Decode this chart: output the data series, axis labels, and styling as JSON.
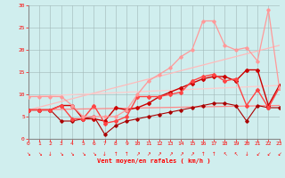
{
  "xlabel": "Vent moyen/en rafales ( km/h )",
  "xlim": [
    0,
    23
  ],
  "ylim": [
    0,
    30
  ],
  "xticks": [
    0,
    1,
    2,
    3,
    4,
    5,
    6,
    7,
    8,
    9,
    10,
    11,
    12,
    13,
    14,
    15,
    16,
    17,
    18,
    19,
    20,
    21,
    22,
    23
  ],
  "yticks": [
    0,
    5,
    10,
    15,
    20,
    25,
    30
  ],
  "background_color": "#d0eeee",
  "grid_color": "#a0b8b8",
  "series": [
    {
      "comment": "dark red main line with markers",
      "x": [
        0,
        1,
        2,
        3,
        4,
        5,
        6,
        7,
        8,
        9,
        10,
        11,
        12,
        13,
        14,
        15,
        16,
        17,
        18,
        19,
        20,
        21,
        22,
        23
      ],
      "y": [
        6.5,
        6.5,
        6.5,
        7.5,
        7.5,
        4.5,
        4.5,
        4.0,
        7.0,
        6.5,
        7.0,
        8.0,
        9.5,
        10.5,
        11.5,
        12.5,
        13.5,
        14.0,
        14.0,
        13.0,
        15.5,
        15.5,
        7.5,
        12.0
      ],
      "color": "#cc0000",
      "lw": 1.0,
      "marker": "D",
      "ms": 2.0
    },
    {
      "comment": "lower dark red line with markers - min values",
      "x": [
        0,
        1,
        2,
        3,
        4,
        5,
        6,
        7,
        8,
        9,
        10,
        11,
        12,
        13,
        14,
        15,
        16,
        17,
        18,
        19,
        20,
        21,
        22,
        23
      ],
      "y": [
        6.5,
        6.5,
        6.5,
        4.0,
        4.0,
        4.5,
        5.0,
        1.0,
        3.0,
        4.0,
        4.5,
        5.0,
        5.5,
        6.0,
        6.5,
        7.0,
        7.5,
        8.0,
        8.0,
        7.5,
        4.0,
        7.5,
        7.0,
        7.0
      ],
      "color": "#aa0000",
      "lw": 0.8,
      "marker": "D",
      "ms": 1.8
    },
    {
      "comment": "medium red line with markers",
      "x": [
        0,
        1,
        2,
        3,
        4,
        5,
        6,
        7,
        8,
        9,
        10,
        11,
        12,
        13,
        14,
        15,
        16,
        17,
        18,
        19,
        20,
        21,
        22,
        23
      ],
      "y": [
        6.5,
        6.5,
        6.5,
        7.5,
        4.5,
        4.5,
        7.5,
        3.5,
        4.0,
        5.0,
        9.5,
        9.5,
        9.5,
        10.0,
        10.5,
        13.0,
        14.0,
        14.5,
        13.0,
        13.5,
        7.5,
        11.0,
        7.0,
        11.5
      ],
      "color": "#ff4444",
      "lw": 1.0,
      "marker": "D",
      "ms": 2.0
    },
    {
      "comment": "light pink line - max values with markers",
      "x": [
        0,
        1,
        2,
        3,
        4,
        5,
        6,
        7,
        8,
        9,
        10,
        11,
        12,
        13,
        14,
        15,
        16,
        17,
        18,
        19,
        20,
        21,
        22,
        23
      ],
      "y": [
        9.5,
        9.5,
        9.5,
        9.5,
        7.5,
        5.0,
        5.0,
        5.0,
        5.0,
        6.5,
        10.0,
        13.0,
        14.5,
        16.0,
        18.5,
        20.0,
        26.5,
        26.5,
        21.0,
        20.0,
        20.5,
        17.5,
        29.0,
        11.5
      ],
      "color": "#ff9999",
      "lw": 0.9,
      "marker": "D",
      "ms": 1.8
    },
    {
      "comment": "linear fit line upper - light pink no markers",
      "x": [
        0,
        23
      ],
      "y": [
        6.5,
        21.0
      ],
      "color": "#ffbbbb",
      "lw": 0.9,
      "marker": null,
      "ms": 0
    },
    {
      "comment": "linear fit line lower - salmon no markers",
      "x": [
        0,
        23
      ],
      "y": [
        6.5,
        7.5
      ],
      "color": "#ff8888",
      "lw": 0.9,
      "marker": null,
      "ms": 0
    },
    {
      "comment": "linear fit line medium - very light pink no markers",
      "x": [
        0,
        23
      ],
      "y": [
        9.5,
        12.0
      ],
      "color": "#ffcccc",
      "lw": 0.9,
      "marker": null,
      "ms": 0
    }
  ],
  "wind_symbols": [
    "↘",
    "↘",
    "↓",
    "↘",
    "↘",
    "↘",
    "↘",
    "↓",
    "↑",
    "↑",
    "↗",
    "↗",
    "↗",
    "↗",
    "↗",
    "↗",
    "↑",
    "↑",
    "↖",
    "↖",
    "↓",
    "↙",
    "↙",
    "↙"
  ]
}
